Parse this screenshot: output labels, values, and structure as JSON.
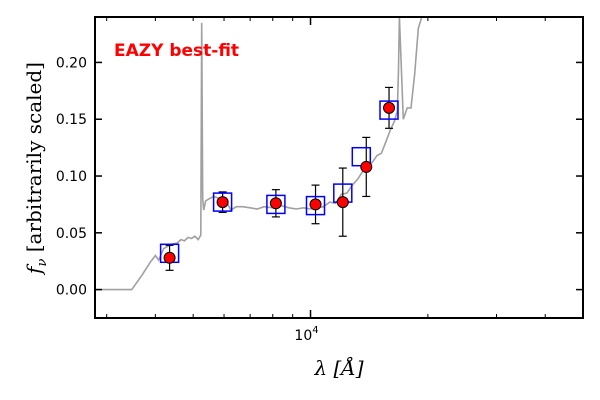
{
  "chart_data": {
    "type": "scatter",
    "title": "",
    "xlabel": "λ [Å]",
    "ylabel_italic": "f",
    "ylabel_sub": "ν",
    "ylabel_rest": " [arbitrarily scaled]",
    "x_scale": "log",
    "xlim": [
      2800,
      50000
    ],
    "ylim": [
      -0.025,
      0.24
    ],
    "grid": false,
    "annotation": {
      "text": "EAZY best-fit",
      "color": "#ff0000"
    },
    "x_tick_labels": [
      {
        "value": 10000,
        "base": "10",
        "exp": "4"
      }
    ],
    "y_ticks": [
      0.0,
      0.05,
      0.1,
      0.15,
      0.2
    ],
    "y_tick_labels": [
      "0.00",
      "0.05",
      "0.10",
      "0.15",
      "0.20"
    ],
    "observed": {
      "color": "#ff0000",
      "points": [
        {
          "x": 4350,
          "y": 0.028,
          "yerr": 0.011
        },
        {
          "x": 5950,
          "y": 0.077,
          "yerr": 0.009
        },
        {
          "x": 8150,
          "y": 0.076,
          "yerr": 0.012
        },
        {
          "x": 10300,
          "y": 0.075,
          "yerr": 0.017
        },
        {
          "x": 12100,
          "y": 0.077,
          "yerr": 0.03
        },
        {
          "x": 13900,
          "y": 0.108,
          "yerr": 0.026
        },
        {
          "x": 15900,
          "y": 0.16,
          "yerr": 0.018
        }
      ]
    },
    "model_photometry": {
      "color": "#0000ff",
      "points": [
        {
          "x": 4350,
          "y": 0.032
        },
        {
          "x": 5950,
          "y": 0.077
        },
        {
          "x": 8150,
          "y": 0.075
        },
        {
          "x": 10300,
          "y": 0.074
        },
        {
          "x": 12100,
          "y": 0.085
        },
        {
          "x": 13500,
          "y": 0.117
        },
        {
          "x": 15900,
          "y": 0.158
        }
      ]
    },
    "template": {
      "color": "#a0a0a0",
      "points": [
        [
          2800,
          0.0
        ],
        [
          3200,
          0.0
        ],
        [
          3480,
          0.0
        ],
        [
          3700,
          0.013
        ],
        [
          3880,
          0.024
        ],
        [
          4000,
          0.03
        ],
        [
          4080,
          0.026
        ],
        [
          4200,
          0.036
        ],
        [
          4400,
          0.04
        ],
        [
          4550,
          0.041
        ],
        [
          4650,
          0.044
        ],
        [
          4750,
          0.043
        ],
        [
          4850,
          0.046
        ],
        [
          4950,
          0.045
        ],
        [
          5050,
          0.047
        ],
        [
          5150,
          0.044
        ],
        [
          5230,
          0.048
        ],
        [
          5260,
          0.235
        ],
        [
          5290,
          0.08
        ],
        [
          5320,
          0.07
        ],
        [
          5380,
          0.078
        ],
        [
          5500,
          0.08
        ],
        [
          5650,
          0.082
        ],
        [
          5850,
          0.08
        ],
        [
          6050,
          0.079
        ],
        [
          6250,
          0.07
        ],
        [
          6450,
          0.073
        ],
        [
          6700,
          0.073
        ],
        [
          7000,
          0.072
        ],
        [
          7300,
          0.071
        ],
        [
          7600,
          0.073
        ],
        [
          8000,
          0.072
        ],
        [
          8400,
          0.074
        ],
        [
          8800,
          0.072
        ],
        [
          9200,
          0.071
        ],
        [
          9600,
          0.072
        ],
        [
          10000,
          0.071
        ],
        [
          10400,
          0.072
        ],
        [
          10800,
          0.073
        ],
        [
          11200,
          0.077
        ],
        [
          11600,
          0.076
        ],
        [
          12000,
          0.084
        ],
        [
          12400,
          0.085
        ],
        [
          12800,
          0.092
        ],
        [
          13200,
          0.097
        ],
        [
          13600,
          0.104
        ],
        [
          14000,
          0.108
        ],
        [
          14400,
          0.112
        ],
        [
          14800,
          0.118
        ],
        [
          15200,
          0.12
        ],
        [
          15600,
          0.13
        ],
        [
          16000,
          0.14
        ],
        [
          16400,
          0.148
        ],
        [
          16700,
          0.157
        ],
        [
          16800,
          0.19
        ],
        [
          16900,
          0.24
        ],
        [
          17300,
          0.15
        ],
        [
          17700,
          0.16
        ],
        [
          18100,
          0.16
        ],
        [
          18500,
          0.19
        ],
        [
          18900,
          0.23
        ],
        [
          19300,
          0.24
        ]
      ]
    }
  }
}
